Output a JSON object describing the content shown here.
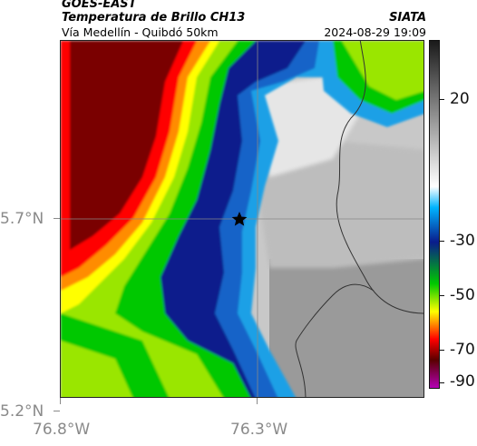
{
  "header": {
    "title_line1": "GOES-EAST",
    "title_line2": "Temperatura de Brillo CH13",
    "source": "SIATA",
    "location": "Vía Medellín - Quibdó 50km",
    "timestamp": "2024-08-29 19:09"
  },
  "map": {
    "lat_labels": [
      "5.7°N",
      "5.2°N"
    ],
    "lon_labels": [
      "76.8°W",
      "76.3°W"
    ],
    "marker_icon": "star-icon"
  },
  "colorbar": {
    "labels": [
      "20",
      "-30",
      "-50",
      "-70",
      "-90"
    ],
    "colors": [
      "#1a1a1a",
      "#ffffff",
      "#00b4ff",
      "#0a1c8c",
      "#00c800",
      "#ffff00",
      "#ff0000",
      "#5a0000",
      "#b400b4"
    ]
  }
}
